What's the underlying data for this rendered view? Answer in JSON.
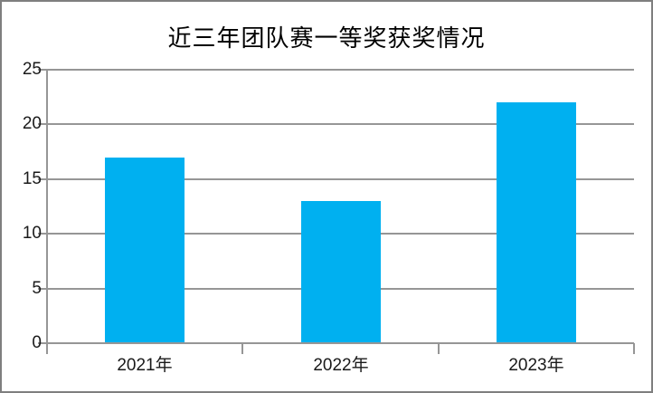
{
  "window": {
    "background": "#ffffff",
    "frame_border_color": "#7f7f7f"
  },
  "chart_data": {
    "type": "bar",
    "title": "近三年团队赛一等奖获奖情况",
    "categories": [
      "2021年",
      "2022年",
      "2023年"
    ],
    "values": [
      17,
      13,
      22
    ],
    "xlabel": "",
    "ylabel": "",
    "ylim": [
      0,
      25
    ],
    "yticks": [
      0,
      5,
      10,
      15,
      20,
      25
    ],
    "grid": true,
    "legend": false,
    "bar_color": "#00B0F0",
    "grid_color": "#969696",
    "axis_color": "#969696",
    "tick_label_color": "#1a1a1a",
    "title_color": "#000000"
  }
}
